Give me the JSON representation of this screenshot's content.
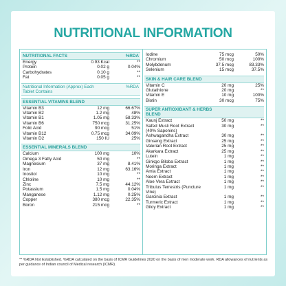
{
  "title": "NUTRITIONAL INFORMATION",
  "left": [
    {
      "title": "NUTRITIONAL FACTS",
      "rda_header": "%RDA",
      "rows": [
        [
          "Energy",
          "0.93 Kcal",
          "**"
        ],
        [
          "Protein",
          "0.02 g",
          "0.04%"
        ],
        [
          "Carbohydrates",
          "0.10 g",
          "**"
        ],
        [
          "Fat",
          "0.05 g",
          "**"
        ]
      ]
    },
    {
      "title": "Nutritional Information (Approx) Each Tablet Contains",
      "rda_header": "%RDA",
      "rows": []
    },
    {
      "title": "ESSENTIAL VITAMINS BLEND",
      "rows": [
        [
          "Vitamin B3",
          "12 mg",
          "66.67%"
        ],
        [
          "Vitamin B2",
          "1.2 mg",
          "48%"
        ],
        [
          "Vitamin B1",
          "1.05 mg",
          "58.33%"
        ],
        [
          "Vitamin B6",
          "750 mcg",
          "31.25%"
        ],
        [
          "Folic Acid",
          "90 mcg",
          "51%"
        ],
        [
          "Vitamin B12",
          "0.75 mcg",
          "34.09%"
        ],
        [
          "Vitamin D2",
          "150 IU",
          "25%"
        ]
      ]
    },
    {
      "title": "ESSENTIAL MINERALS BLEND",
      "rows": [
        [
          "Calcium",
          "100 mg",
          "10%"
        ],
        [
          "Omega 3 Fatty Acid",
          "50 mg",
          "**"
        ],
        [
          "Magnesium",
          "37 mg",
          "8.41%"
        ],
        [
          "Iron",
          "12 mg",
          "63.16%"
        ],
        [
          "Inositol",
          "10 mg",
          "**"
        ],
        [
          "Chloline",
          "10 mg",
          "**"
        ],
        [
          "Zinc",
          "7.5 mg",
          "44.12%"
        ],
        [
          "Potassium",
          "1.5 mg",
          "0.04%"
        ],
        [
          "Manganese",
          "1.12 mg",
          "0.25%"
        ],
        [
          "Copper",
          "380 mcg",
          "22.35%"
        ],
        [
          "Boron",
          "215 mcg",
          "**"
        ]
      ]
    }
  ],
  "right": [
    {
      "rows": [
        [
          "Iodine",
          "75 mcg",
          "50%"
        ],
        [
          "Chromium",
          "50 mcg",
          "100%"
        ],
        [
          "Molybdenum",
          "37.5 mcg",
          "83.33%"
        ],
        [
          "Selenium",
          "15 mcg",
          "37.5%"
        ]
      ]
    },
    {
      "title": "SKIN & HAIR CARE BLEND",
      "rows": [
        [
          "Vitamin C",
          "20 mg",
          "25%"
        ],
        [
          "Glutathione",
          "20 mg",
          "**"
        ],
        [
          "Vitamin E",
          "10 mg",
          "100%"
        ],
        [
          "Biotin",
          "30 mcg",
          "75%"
        ]
      ]
    },
    {
      "title": "SUPER ANTIOXIDANT & HERBS BLEND",
      "rows": [
        [
          "Kaunj Extract",
          "50 mg",
          "**"
        ],
        [
          "Safed Musli Root Extract (40% Saponins)",
          "30 mg",
          "**"
        ],
        [
          "Ashwagandha Extract",
          "30 mg",
          "**"
        ],
        [
          "Ginseng Extract",
          "25 mg",
          "**"
        ],
        [
          "Valerian Root Extract",
          "25 mg",
          "**"
        ],
        [
          "Akarkara Extract",
          "25 mg",
          "**"
        ],
        [
          "Lutein",
          "1 mg",
          "**"
        ],
        [
          "Ginkgo Biloba Extract",
          "1 mg",
          "**"
        ],
        [
          "Moringa Extract",
          "1 mg",
          "**"
        ],
        [
          "Amla Extract",
          "1 mg",
          "**"
        ],
        [
          "Neem Extract",
          "1 mg",
          "**"
        ],
        [
          "Aloe Vera Extract",
          "1 mg",
          "**"
        ],
        [
          "Tribulus Terrestris (Puncture Vine)",
          "1 mg",
          "**"
        ],
        [
          "Garcinia Extract",
          "1 mg",
          "**"
        ],
        [
          "Turmeric Extract",
          "1 mg",
          "**"
        ],
        [
          "Giloy Extract",
          "1 mg",
          "**"
        ]
      ]
    }
  ],
  "footer": "** %RDA Not Established. %RDA calculated on the basis of ICMR Guidelines 2020 on the basis of men moderate work. RDA allowances of nutrients as per guidance of Indian council of Medical research (ICMR)."
}
